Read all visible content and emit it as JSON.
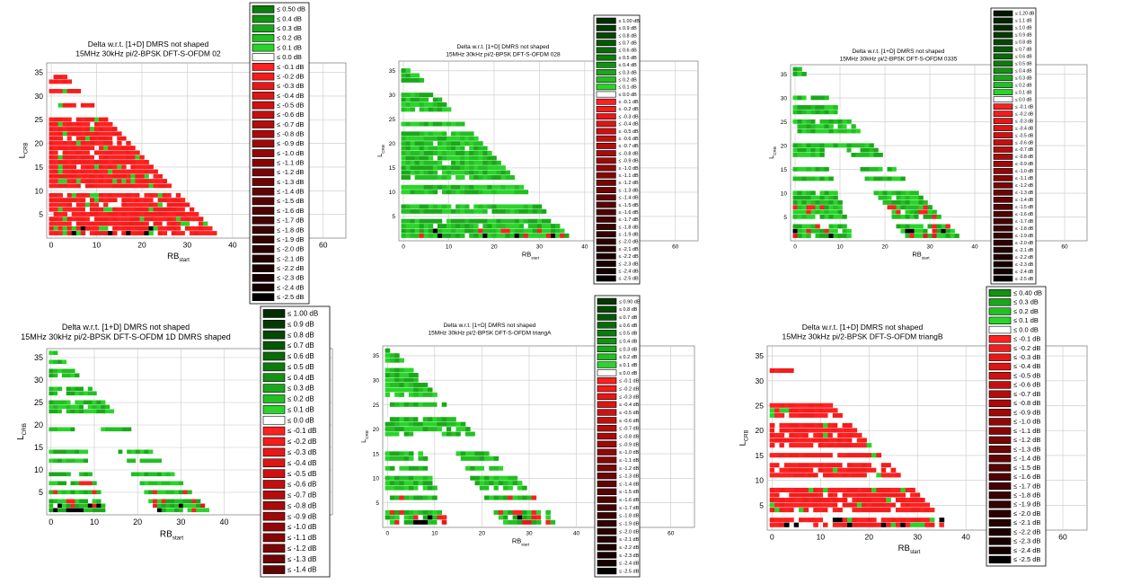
{
  "figure_colors": {
    "pos": [
      "#2ad42a",
      "#22bf22",
      "#1aa81a",
      "#139213",
      "#0c7c0c",
      "#086a08",
      "#055805",
      "#034803",
      "#023a02",
      "#012d01",
      "#002200",
      "#001800"
    ],
    "neg": [
      "#ff2020",
      "#f41c1c",
      "#e81818",
      "#dc1515",
      "#cf1111",
      "#c30f0f",
      "#b70c0c",
      "#aa0a0a",
      "#9e0909",
      "#920707",
      "#860606",
      "#7a0505",
      "#6e0404",
      "#630404",
      "#580303",
      "#4e0303",
      "#440202",
      "#3b0202",
      "#330101",
      "#2c0101",
      "#250101",
      "#1f0000",
      "#190000",
      "#140000",
      "#100000"
    ],
    "zero": "#ffffff",
    "grid": "#c8c8c8"
  },
  "chart_data": [
    {
      "type": "heatmap",
      "title": "Delta w.r.t. [1+D] DMRS not shaped",
      "subtitle": "15MHz 30kHz pi/2-BPSK DFT-S-OFDM 02",
      "xlabel": "RB",
      "xlabel_sub": "start",
      "ylabel": "L",
      "ylabel_sub": "CRB",
      "xticks": [
        0,
        10,
        20,
        30,
        40,
        50,
        60
      ],
      "yticks": [
        5,
        10,
        15,
        20,
        25,
        30,
        35
      ],
      "xlim": [
        -1,
        65
      ],
      "ylim": [
        0,
        37
      ],
      "grid": true,
      "color_scheme": "red",
      "legend": [
        "≤ 0.50 dB",
        "≤ 0.4 dB",
        "≤ 0.3 dB",
        "≤ 0.2 dB",
        "≤ 0.1 dB",
        "≤ 0.0 dB",
        "≤ -0.1 dB",
        "≤ -0.2 dB",
        "≤ -0.3 dB",
        "≤ -0.4 dB",
        "≤ -0.5 dB",
        "≤ -0.6 dB",
        "≤ -0.7 dB",
        "≤ -0.8 dB",
        "≤ -0.9 dB",
        "≤ -1.0 dB",
        "≤ -1.1 dB",
        "≤ -1.2 dB",
        "≤ -1.3 dB",
        "≤ -1.4 dB",
        "≤ -1.5 dB",
        "≤ -1.6 dB",
        "≤ -1.7 dB",
        "≤ -1.8 dB",
        "≤ -1.9 dB",
        "≤ -2.0 dB",
        "≤ -2.1 dB",
        "≤ -2.2 dB",
        "≤ -2.3 dB",
        "≤ -2.4 dB",
        "≤ -2.5 dB"
      ],
      "legend_pos": 5
    },
    {
      "type": "heatmap",
      "title": "Delta w.r.t. [1+D] DMRS not shaped",
      "subtitle": "15MHz 30kHz pi/2-BPSK DFT-S-OFDM 028",
      "xlabel": "RB",
      "xlabel_sub": "start",
      "ylabel": "L",
      "ylabel_sub": "CRB",
      "xticks": [
        0,
        10,
        20,
        30,
        40,
        50,
        60
      ],
      "yticks": [
        5,
        10,
        15,
        20,
        25,
        30,
        35
      ],
      "xlim": [
        -1,
        65
      ],
      "ylim": [
        0,
        37
      ],
      "grid": true,
      "color_scheme": "green",
      "legend": [
        "≤ 1.00 dB",
        "≤ 0.9 dB",
        "≤ 0.8 dB",
        "≤ 0.7 dB",
        "≤ 0.6 dB",
        "≤ 0.5 dB",
        "≤ 0.4 dB",
        "≤ 0.3 dB",
        "≤ 0.2 dB",
        "≤ 0.1 dB",
        "≤ 0.0 dB",
        "≤ -0.1 dB",
        "≤ -0.2 dB",
        "≤ -0.3 dB",
        "≤ -0.4 dB",
        "≤ -0.5 dB",
        "≤ -0.6 dB",
        "≤ -0.7 dB",
        "≤ -0.8 dB",
        "≤ -0.9 dB",
        "≤ -1.0 dB",
        "≤ -1.1 dB",
        "≤ -1.2 dB",
        "≤ -1.3 dB",
        "≤ -1.4 dB",
        "≤ -1.5 dB",
        "≤ -1.6 dB",
        "≤ -1.7 dB",
        "≤ -1.8 dB",
        "≤ -1.9 dB",
        "≤ -2.0 dB",
        "≤ -2.1 dB",
        "≤ -2.2 dB",
        "≤ -2.3 dB",
        "≤ -2.4 dB",
        "≤ -2.5 dB"
      ],
      "legend_pos": 10
    },
    {
      "type": "heatmap",
      "title": "Delta w.r.t. [1+D] DMRS not shaped",
      "subtitle": "15MHz 30kHz pi/2-BPSK DFT-S-OFDM 0335",
      "xlabel": "RB",
      "xlabel_sub": "start",
      "ylabel": "L",
      "ylabel_sub": "CRB",
      "xticks": [
        0,
        10,
        20,
        30,
        40,
        50,
        60
      ],
      "yticks": [
        5,
        10,
        15,
        20,
        25,
        30,
        35
      ],
      "xlim": [
        -1,
        65
      ],
      "ylim": [
        0,
        37
      ],
      "grid": true,
      "color_scheme": "split",
      "legend": [
        "≤ 1.20 dB",
        "≤ 1.1 dB",
        "≤ 1.0 dB",
        "≤ 0.9 dB",
        "≤ 0.8 dB",
        "≤ 0.7 dB",
        "≤ 0.6 dB",
        "≤ 0.5 dB",
        "≤ 0.4 dB",
        "≤ 0.3 dB",
        "≤ 0.2 dB",
        "≤ 0.1 dB",
        "≤ 0.0 dB",
        "≤ -0.1 dB",
        "≤ -0.2 dB",
        "≤ -0.3 dB",
        "≤ -0.4 dB",
        "≤ -0.5 dB",
        "≤ -0.6 dB",
        "≤ -0.7 dB",
        "≤ -0.8 dB",
        "≤ -0.9 dB",
        "≤ -1.0 dB",
        "≤ -1.1 dB",
        "≤ -1.2 dB",
        "≤ -1.3 dB",
        "≤ -1.4 dB",
        "≤ -1.5 dB",
        "≤ -1.6 dB",
        "≤ -1.7 dB",
        "≤ -1.8 dB",
        "≤ -1.9 dB",
        "≤ -2.0 dB",
        "≤ -2.1 dB",
        "≤ -2.2 dB",
        "≤ -2.3 dB",
        "≤ -2.4 dB",
        "≤ -2.5 dB"
      ],
      "legend_pos": 12
    },
    {
      "type": "heatmap",
      "title": "Delta w.r.t. [1+D] DMRS not shaped",
      "subtitle": "15MHz 30kHz pi/2-BPSK DFT-S-OFDM 1D DMRS shaped",
      "xlabel": "RB",
      "xlabel_sub": "start",
      "ylabel": "L",
      "ylabel_sub": "CRB",
      "xticks": [
        0,
        10,
        20,
        30,
        40
      ],
      "yticks": [
        5,
        10,
        15,
        20,
        25,
        30,
        35
      ],
      "xlim": [
        -1,
        65
      ],
      "ylim": [
        0,
        37
      ],
      "grid": true,
      "color_scheme": "split",
      "legend": [
        "≤ 1.00 dB",
        "≤ 0.9 dB",
        "≤ 0.8 dB",
        "≤ 0.7 dB",
        "≤ 0.6 dB",
        "≤ 0.5 dB",
        "≤ 0.4 dB",
        "≤ 0.3 dB",
        "≤ 0.2 dB",
        "≤ 0.1 dB",
        "≤ 0.0 dB",
        "≤ -0.1 dB",
        "≤ -0.2 dB",
        "≤ -0.3 dB",
        "≤ -0.4 dB",
        "≤ -0.5 dB",
        "≤ -0.6 dB",
        "≤ -0.7 dB",
        "≤ -0.8 dB",
        "≤ -0.9 dB",
        "≤ -1.0 dB",
        "≤ -1.1 dB",
        "≤ -1.2 dB",
        "≤ -1.3 dB",
        "≤ -1.4 dB"
      ],
      "legend_pos": 10
    },
    {
      "type": "heatmap",
      "title": "Delta w.r.t. [1+D] DMRS not shaped",
      "subtitle": "15MHz 30kHz pi/2-BPSK DFT-S-OFDM triangA",
      "xlabel": "RB",
      "xlabel_sub": "start",
      "ylabel": "L",
      "ylabel_sub": "CRB",
      "xticks": [
        0,
        10,
        20,
        30,
        40,
        50,
        60
      ],
      "yticks": [
        5,
        10,
        15,
        20,
        25,
        30,
        35
      ],
      "xlim": [
        -1,
        65
      ],
      "ylim": [
        0,
        37
      ],
      "grid": true,
      "color_scheme": "split",
      "legend": [
        "≤ 0.90 dB",
        "≤ 0.8 dB",
        "≤ 0.7 dB",
        "≤ 0.6 dB",
        "≤ 0.5 dB",
        "≤ 0.4 dB",
        "≤ 0.3 dB",
        "≤ 0.2 dB",
        "≤ 0.1 dB",
        "≤ 0.0 dB",
        "≤ -0.1 dB",
        "≤ -0.2 dB",
        "≤ -0.3 dB",
        "≤ -0.4 dB",
        "≤ -0.5 dB",
        "≤ -0.6 dB",
        "≤ -0.7 dB",
        "≤ -0.8 dB",
        "≤ -0.9 dB",
        "≤ -1.0 dB",
        "≤ -1.1 dB",
        "≤ -1.2 dB",
        "≤ -1.3 dB",
        "≤ -1.4 dB",
        "≤ -1.5 dB",
        "≤ -1.6 dB",
        "≤ -1.7 dB",
        "≤ -1.8 dB",
        "≤ -1.9 dB",
        "≤ -2.0 dB",
        "≤ -2.1 dB",
        "≤ -2.2 dB",
        "≤ -2.3 dB",
        "≤ -2.4 dB",
        "≤ -2.5 dB"
      ],
      "legend_pos": 9
    },
    {
      "type": "heatmap",
      "title": "Delta w.r.t. [1+D] DMRS not shaped",
      "subtitle": "15MHz 30kHz pi/2-BPSK DFT-S-OFDM triangB",
      "xlabel": "RB",
      "xlabel_sub": "start",
      "ylabel": "L",
      "ylabel_sub": "CRB",
      "xticks": [
        0,
        10,
        20,
        30,
        40,
        50,
        60
      ],
      "yticks": [
        5,
        10,
        15,
        20,
        25,
        30,
        35
      ],
      "xlim": [
        -1,
        65
      ],
      "ylim": [
        0,
        37
      ],
      "grid": true,
      "color_scheme": "red",
      "legend": [
        "≤ 0.40 dB",
        "≤ 0.3 dB",
        "≤ 0.2 dB",
        "≤ 0.1 dB",
        "≤ 0.0 dB",
        "≤ -0.1 dB",
        "≤ -0.2 dB",
        "≤ -0.3 dB",
        "≤ -0.4 dB",
        "≤ -0.5 dB",
        "≤ -0.6 dB",
        "≤ -0.7 dB",
        "≤ -0.8 dB",
        "≤ -0.9 dB",
        "≤ -1.0 dB",
        "≤ -1.1 dB",
        "≤ -1.2 dB",
        "≤ -1.3 dB",
        "≤ -1.4 dB",
        "≤ -1.5 dB",
        "≤ -1.6 dB",
        "≤ -1.7 dB",
        "≤ -1.8 dB",
        "≤ -1.9 dB",
        "≤ -2.0 dB",
        "≤ -2.1 dB",
        "≤ -2.2 dB",
        "≤ -2.3 dB",
        "≤ -2.4 dB",
        "≤ -2.5 dB"
      ],
      "legend_pos": 4
    }
  ]
}
